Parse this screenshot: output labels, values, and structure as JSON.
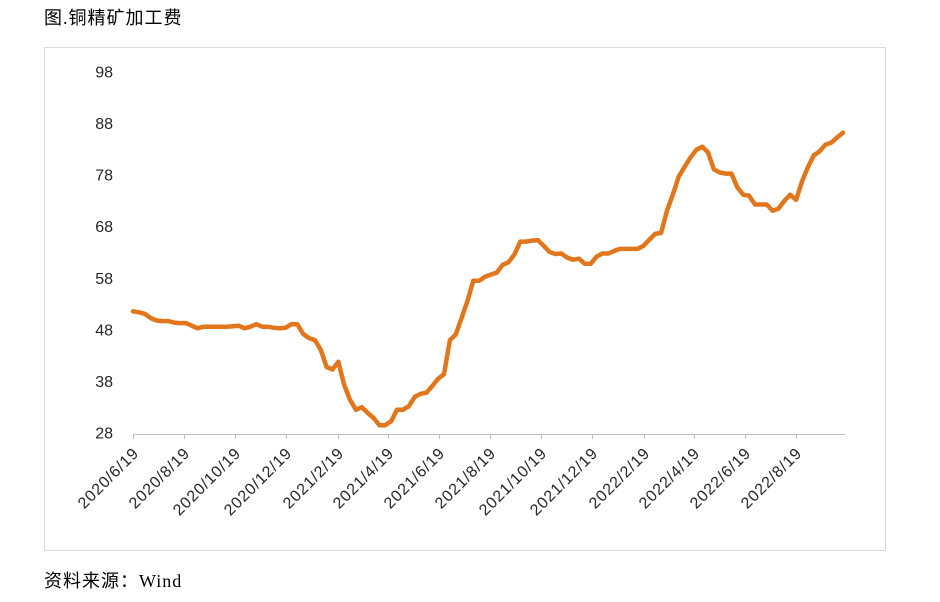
{
  "figure": {
    "source": "资料来源：Wind"
  },
  "chart_data": {
    "type": "line",
    "title": "图.铜精矿加工费",
    "xlim": [
      "2020/6/19",
      "2022/10/14"
    ],
    "ylim": [
      28,
      98
    ],
    "yticks": [
      28,
      38,
      48,
      58,
      68,
      78,
      88,
      98
    ],
    "xticks": [
      "2020/6/19",
      "2020/8/19",
      "2020/10/19",
      "2020/12/19",
      "2021/2/19",
      "2021/4/19",
      "2021/6/19",
      "2021/8/19",
      "2021/10/19",
      "2021/12/19",
      "2022/2/19",
      "2022/4/19",
      "2022/6/19",
      "2022/8/19"
    ],
    "grid": false,
    "legend": "none",
    "x": [
      "2020/6/19",
      "2020/6/26",
      "2020/7/3",
      "2020/7/10",
      "2020/7/17",
      "2020/7/24",
      "2020/7/31",
      "2020/8/7",
      "2020/8/14",
      "2020/8/21",
      "2020/8/28",
      "2020/9/4",
      "2020/9/11",
      "2020/9/18",
      "2020/9/25",
      "2020/10/2",
      "2020/10/9",
      "2020/10/16",
      "2020/10/23",
      "2020/10/30",
      "2020/11/6",
      "2020/11/13",
      "2020/11/20",
      "2020/11/27",
      "2020/12/4",
      "2020/12/11",
      "2020/12/18",
      "2020/12/25",
      "2021/1/1",
      "2021/1/8",
      "2021/1/15",
      "2021/1/22",
      "2021/1/29",
      "2021/2/5",
      "2021/2/12",
      "2021/2/19",
      "2021/2/26",
      "2021/3/5",
      "2021/3/12",
      "2021/3/19",
      "2021/3/26",
      "2021/4/2",
      "2021/4/9",
      "2021/4/16",
      "2021/4/23",
      "2021/4/30",
      "2021/5/7",
      "2021/5/14",
      "2021/5/21",
      "2021/5/28",
      "2021/6/4",
      "2021/6/11",
      "2021/6/18",
      "2021/6/25",
      "2021/7/2",
      "2021/7/9",
      "2021/7/16",
      "2021/7/23",
      "2021/7/30",
      "2021/8/6",
      "2021/8/13",
      "2021/8/20",
      "2021/8/27",
      "2021/9/3",
      "2021/9/10",
      "2021/9/17",
      "2021/9/24",
      "2021/10/1",
      "2021/10/8",
      "2021/10/15",
      "2021/10/22",
      "2021/10/29",
      "2021/11/5",
      "2021/11/12",
      "2021/11/19",
      "2021/11/26",
      "2021/12/3",
      "2021/12/10",
      "2021/12/17",
      "2021/12/24",
      "2021/12/31",
      "2022/1/7",
      "2022/1/14",
      "2022/1/21",
      "2022/1/28",
      "2022/2/4",
      "2022/2/11",
      "2022/2/18",
      "2022/2/25",
      "2022/3/4",
      "2022/3/11",
      "2022/3/18",
      "2022/3/25",
      "2022/4/1",
      "2022/4/8",
      "2022/4/15",
      "2022/4/22",
      "2022/4/29",
      "2022/5/6",
      "2022/5/13",
      "2022/5/20",
      "2022/5/27",
      "2022/6/3",
      "2022/6/10",
      "2022/6/17",
      "2022/6/24",
      "2022/7/1",
      "2022/7/8",
      "2022/7/15",
      "2022/7/22",
      "2022/7/29",
      "2022/8/5",
      "2022/8/12",
      "2022/8/19",
      "2022/8/26",
      "2022/9/2",
      "2022/9/9",
      "2022/9/16",
      "2022/9/23",
      "2022/9/30",
      "2022/10/7",
      "2022/10/14"
    ],
    "series": [
      {
        "color": "#E2761C",
        "values": [
          51.8,
          51.6,
          51.3,
          50.5,
          50.0,
          49.9,
          49.9,
          49.6,
          49.5,
          49.5,
          49.0,
          48.5,
          48.8,
          48.8,
          48.8,
          48.8,
          48.8,
          48.9,
          49.0,
          48.5,
          48.8,
          49.3,
          48.8,
          48.8,
          48.6,
          48.5,
          48.6,
          49.3,
          49.3,
          47.4,
          46.6,
          46.2,
          44.3,
          41.0,
          40.5,
          42.0,
          37.5,
          34.6,
          32.7,
          33.2,
          32.1,
          31.1,
          29.7,
          29.7,
          30.5,
          32.7,
          32.7,
          33.4,
          35.2,
          35.8,
          36.0,
          37.3,
          38.7,
          39.6,
          46.2,
          47.3,
          50.5,
          53.8,
          57.7,
          57.7,
          58.5,
          58.9,
          59.3,
          60.8,
          61.3,
          62.8,
          65.3,
          65.3,
          65.5,
          65.6,
          64.5,
          63.3,
          62.9,
          63.0,
          62.2,
          61.8,
          62.0,
          61.0,
          61.0,
          62.4,
          63.0,
          63.0,
          63.5,
          63.9,
          63.9,
          63.9,
          63.9,
          64.5,
          65.7,
          66.8,
          67.0,
          71.3,
          74.4,
          77.9,
          79.8,
          81.6,
          83.1,
          83.7,
          82.6,
          79.3,
          78.7,
          78.5,
          78.5,
          75.8,
          74.4,
          74.2,
          72.5,
          72.5,
          72.5,
          71.3,
          71.7,
          73.2,
          74.4,
          73.4,
          76.9,
          79.7,
          82.0,
          82.8,
          84.1,
          84.5,
          85.5,
          86.4
        ]
      }
    ]
  }
}
